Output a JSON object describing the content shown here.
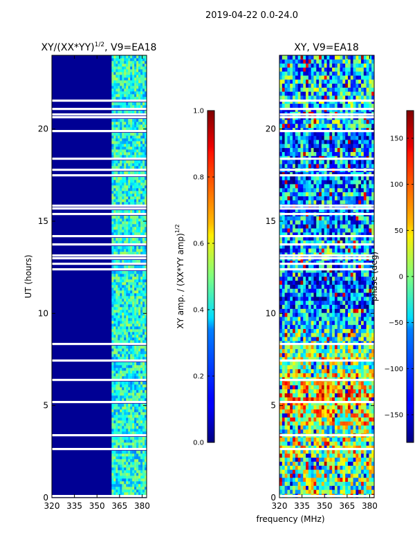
{
  "suptitle": "2019-04-22 0.0-24.0",
  "chart_data": [
    {
      "type": "heatmap",
      "title": "XY/(XX*YY)^1/2, V9=EA18",
      "title_main": "XY/(XX*YY)",
      "title_exp": "1/2",
      "title_tail": ", V9=EA18",
      "xlabel": "",
      "ylabel": "UT (hours)",
      "xlim": [
        320,
        383
      ],
      "ylim": [
        0,
        24
      ],
      "x_ticks": [
        320,
        335,
        350,
        365,
        380
      ],
      "y_ticks": [
        0,
        5,
        10,
        15,
        20
      ],
      "colorbar": {
        "label": "XY amp. / (XX*YY amp)^1/2",
        "label_main": "XY amp. / (XX*YY amp)",
        "label_exp": "1/2",
        "range": [
          0.0,
          1.0
        ],
        "ticks": [
          "0.0",
          "0.2",
          "0.4",
          "0.6",
          "0.8",
          "1.0"
        ],
        "tick_values": [
          0.0,
          0.2,
          0.4,
          0.6,
          0.8,
          1.0
        ]
      },
      "description_values": {
        "low_band_mhz": [
          320,
          360
        ],
        "low_band_level": 0.02,
        "high_band_mhz": [
          360,
          383
        ],
        "high_band_level": 0.4
      }
    },
    {
      "type": "heatmap",
      "title": "XY, V9=EA18",
      "xlabel": "frequency (MHz)",
      "ylabel": "",
      "xlim": [
        320,
        383
      ],
      "ylim": [
        0,
        24
      ],
      "x_ticks": [
        320,
        335,
        350,
        365,
        380
      ],
      "y_ticks": [
        0,
        5,
        10,
        15,
        20
      ],
      "colorbar": {
        "label": "phase (deg)",
        "range": [
          -180,
          180
        ],
        "ticks": [
          "−150",
          "−100",
          "−50",
          "0",
          "50",
          "100",
          "150"
        ],
        "tick_values": [
          -150,
          -100,
          -50,
          0,
          50,
          100,
          150
        ]
      }
    }
  ],
  "colors": {
    "jet_low": "#00007f",
    "jet_high": "#7f0000",
    "gap": "#ffffff"
  }
}
